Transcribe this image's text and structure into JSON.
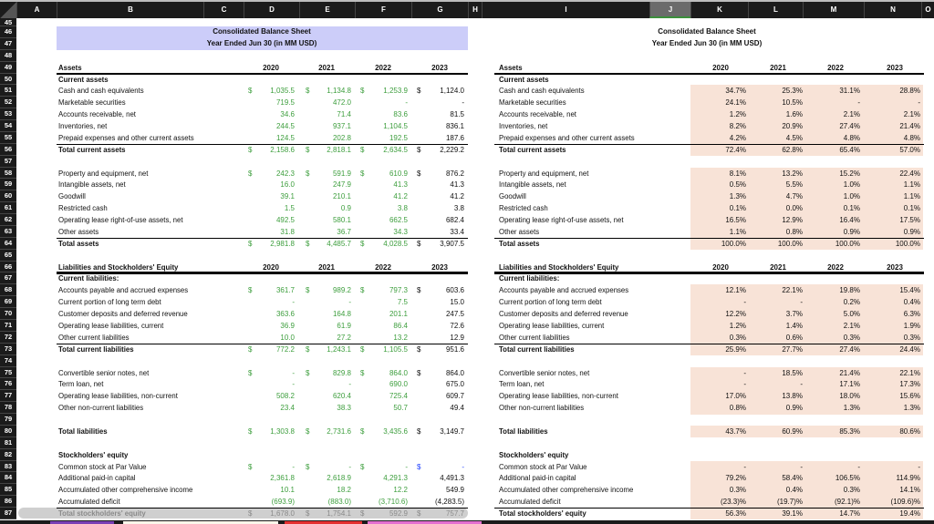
{
  "columns": [
    "A",
    "B",
    "C",
    "D",
    "E",
    "F",
    "G",
    "H",
    "I",
    "J",
    "K",
    "L",
    "M",
    "N",
    "O"
  ],
  "selected_column": "J",
  "row_numbers": [
    45,
    46,
    47,
    48,
    49,
    50,
    51,
    52,
    53,
    54,
    55,
    56,
    57,
    58,
    59,
    60,
    61,
    62,
    63,
    64,
    65,
    66,
    67,
    68,
    69,
    70,
    71,
    72,
    73,
    74,
    75,
    76,
    77,
    78,
    79,
    80,
    81,
    82,
    83,
    84,
    85,
    86,
    87
  ],
  "left_title": {
    "line1": "Consolidated Balance Sheet",
    "line2": "Year Ended Jun 30 (in MM USD)"
  },
  "right_title": {
    "line1": "Consolidated Balance Sheet",
    "line2": "Year Ended Jun 30 (in MM USD)"
  },
  "years": [
    "2020",
    "2021",
    "2022",
    "2023"
  ],
  "currency_symbol": "$",
  "colors": {
    "band": "#cccdf9",
    "input_green": "#3d9e3d",
    "pct_fill": "#f8e3d7",
    "link_blue": "#1f3fff"
  },
  "rows": [
    {
      "n": 49,
      "kind": "header",
      "label": "Assets"
    },
    {
      "n": 50,
      "kind": "section",
      "label": "Current assets"
    },
    {
      "n": 51,
      "kind": "item",
      "dollar": true,
      "label": "Cash and cash equivalents",
      "values": [
        "1,035.5",
        "1,134.8",
        "1,253.9",
        "1,124.0"
      ],
      "pct": [
        "34.7%",
        "25.3%",
        "31.1%",
        "28.8%"
      ]
    },
    {
      "n": 52,
      "kind": "item",
      "label": "Marketable securities",
      "values": [
        "719.5",
        "472.0",
        "-",
        "-"
      ],
      "pct": [
        "24.1%",
        "10.5%",
        "-",
        "-"
      ]
    },
    {
      "n": 53,
      "kind": "item",
      "label": "Accounts receivable, net",
      "values": [
        "34.6",
        "71.4",
        "83.6",
        "81.5"
      ],
      "pct": [
        "1.2%",
        "1.6%",
        "2.1%",
        "2.1%"
      ]
    },
    {
      "n": 54,
      "kind": "item",
      "label": "Inventories, net",
      "values": [
        "244.5",
        "937.1",
        "1,104.5",
        "836.1"
      ],
      "pct": [
        "8.2%",
        "20.9%",
        "27.4%",
        "21.4%"
      ]
    },
    {
      "n": 55,
      "kind": "item",
      "label": "Prepaid expenses and other current assets",
      "values": [
        "124.5",
        "202.8",
        "192.5",
        "187.6"
      ],
      "pct": [
        "4.2%",
        "4.5%",
        "4.8%",
        "4.8%"
      ]
    },
    {
      "n": 56,
      "kind": "total",
      "dollar": true,
      "label": "Total current assets",
      "values": [
        "2,158.6",
        "2,818.1",
        "2,634.5",
        "2,229.2"
      ],
      "pct": [
        "72.4%",
        "62.8%",
        "65.4%",
        "57.0%"
      ]
    },
    {
      "n": 58,
      "kind": "item",
      "dollar": true,
      "label": "Property and equipment, net",
      "values": [
        "242.3",
        "591.9",
        "610.9",
        "876.2"
      ],
      "pct": [
        "8.1%",
        "13.2%",
        "15.2%",
        "22.4%"
      ]
    },
    {
      "n": 59,
      "kind": "item",
      "label": "Intangible assets, net",
      "values": [
        "16.0",
        "247.9",
        "41.3",
        "41.3"
      ],
      "pct": [
        "0.5%",
        "5.5%",
        "1.0%",
        "1.1%"
      ]
    },
    {
      "n": 60,
      "kind": "item",
      "label": "Goodwill",
      "values": [
        "39.1",
        "210.1",
        "41.2",
        "41.2"
      ],
      "pct": [
        "1.3%",
        "4.7%",
        "1.0%",
        "1.1%"
      ]
    },
    {
      "n": 61,
      "kind": "item",
      "label": "Restricted cash",
      "values": [
        "1.5",
        "0.9",
        "3.8",
        "3.8"
      ],
      "pct": [
        "0.1%",
        "0.0%",
        "0.1%",
        "0.1%"
      ]
    },
    {
      "n": 62,
      "kind": "item",
      "label": "Operating lease right-of-use assets, net",
      "values": [
        "492.5",
        "580.1",
        "662.5",
        "682.4"
      ],
      "pct": [
        "16.5%",
        "12.9%",
        "16.4%",
        "17.5%"
      ]
    },
    {
      "n": 63,
      "kind": "item",
      "label": "Other assets",
      "values": [
        "31.8",
        "36.7",
        "34.3",
        "33.4"
      ],
      "pct": [
        "1.1%",
        "0.8%",
        "0.9%",
        "0.9%"
      ]
    },
    {
      "n": 64,
      "kind": "total",
      "dollar": true,
      "label": "Total assets",
      "values": [
        "2,981.8",
        "4,485.7",
        "4,028.5",
        "3,907.5"
      ],
      "pct": [
        "100.0%",
        "100.0%",
        "100.0%",
        "100.0%"
      ]
    },
    {
      "n": 66,
      "kind": "header",
      "label": "Liabilities and Stockholders' Equity"
    },
    {
      "n": 67,
      "kind": "section",
      "label": "Current liabilities:"
    },
    {
      "n": 68,
      "kind": "item",
      "dollar": true,
      "label": "Accounts payable and accrued expenses",
      "values": [
        "361.7",
        "989.2",
        "797.3",
        "603.6"
      ],
      "pct": [
        "12.1%",
        "22.1%",
        "19.8%",
        "15.4%"
      ]
    },
    {
      "n": 69,
      "kind": "item",
      "label": "Current portion of long term debt",
      "values": [
        "-",
        "-",
        "7.5",
        "15.0"
      ],
      "pct": [
        "-",
        "-",
        "0.2%",
        "0.4%"
      ]
    },
    {
      "n": 70,
      "kind": "item",
      "label": "Customer deposits and deferred revenue",
      "values": [
        "363.6",
        "164.8",
        "201.1",
        "247.5"
      ],
      "pct": [
        "12.2%",
        "3.7%",
        "5.0%",
        "6.3%"
      ]
    },
    {
      "n": 71,
      "kind": "item",
      "label": "Operating lease liabilities, current",
      "values": [
        "36.9",
        "61.9",
        "86.4",
        "72.6"
      ],
      "pct": [
        "1.2%",
        "1.4%",
        "2.1%",
        "1.9%"
      ]
    },
    {
      "n": 72,
      "kind": "item",
      "label": "Other current liabilities",
      "values": [
        "10.0",
        "27.2",
        "13.2",
        "12.9"
      ],
      "pct": [
        "0.3%",
        "0.6%",
        "0.3%",
        "0.3%"
      ]
    },
    {
      "n": 73,
      "kind": "total",
      "dollar": true,
      "label": "Total current liabilities",
      "values": [
        "772.2",
        "1,243.1",
        "1,105.5",
        "951.6"
      ],
      "pct": [
        "25.9%",
        "27.7%",
        "27.4%",
        "24.4%"
      ]
    },
    {
      "n": 75,
      "kind": "item",
      "dollar": true,
      "label": "Convertible senior notes, net",
      "values": [
        "-",
        "829.8",
        "864.0",
        "864.0"
      ],
      "pct": [
        "-",
        "18.5%",
        "21.4%",
        "22.1%"
      ]
    },
    {
      "n": 76,
      "kind": "item",
      "label": "Term loan, net",
      "values": [
        "-",
        "-",
        "690.0",
        "675.0"
      ],
      "pct": [
        "-",
        "-",
        "17.1%",
        "17.3%"
      ]
    },
    {
      "n": 77,
      "kind": "item",
      "label": "Operating lease liabilities, non-current",
      "values": [
        "508.2",
        "620.4",
        "725.4",
        "609.7"
      ],
      "pct": [
        "17.0%",
        "13.8%",
        "18.0%",
        "15.6%"
      ]
    },
    {
      "n": 78,
      "kind": "item",
      "label": "Other non-current liabilities",
      "values": [
        "23.4",
        "38.3",
        "50.7",
        "49.4"
      ],
      "pct": [
        "0.8%",
        "0.9%",
        "1.3%",
        "1.3%"
      ]
    },
    {
      "n": 80,
      "kind": "total-noline",
      "dollar": true,
      "label": "Total liabilities",
      "values": [
        "1,303.8",
        "2,731.6",
        "3,435.6",
        "3,149.7"
      ],
      "pct": [
        "43.7%",
        "60.9%",
        "85.3%",
        "80.6%"
      ]
    },
    {
      "n": 82,
      "kind": "section",
      "label": "Stockholders' equity"
    },
    {
      "n": 83,
      "kind": "item",
      "dollar": true,
      "label": "Common stock at Par Value",
      "values": [
        "-",
        "-",
        "-",
        "-"
      ],
      "pct": [
        "-",
        "-",
        "-",
        "-"
      ]
    },
    {
      "n": 84,
      "kind": "item",
      "label": "Additional paid-in capital",
      "values": [
        "2,361.8",
        "2,618.9",
        "4,291.3",
        "4,491.3"
      ],
      "pct": [
        "79.2%",
        "58.4%",
        "106.5%",
        "114.9%"
      ]
    },
    {
      "n": 85,
      "kind": "item",
      "label": "Accumulated other comprehensive income",
      "values": [
        "10.1",
        "18.2",
        "12.2",
        "549.9"
      ],
      "pct": [
        "0.3%",
        "0.4%",
        "0.3%",
        "14.1%"
      ]
    },
    {
      "n": 86,
      "kind": "item",
      "label": "Accumulated deficit",
      "values": [
        "(693.9)",
        "(883.0)",
        "(3,710.6)",
        "(4,283.5)"
      ],
      "pct": [
        "(23.3)%",
        "(19.7)%",
        "(92.1)%",
        "(109.6)%"
      ]
    },
    {
      "n": 87,
      "kind": "total",
      "dollar": true,
      "label": "Total stockholders' equity",
      "values": [
        "1,678.0",
        "1,754.1",
        "592.9",
        "757.7"
      ],
      "pct": [
        "56.3%",
        "39.1%",
        "14.7%",
        "19.4%"
      ]
    }
  ]
}
